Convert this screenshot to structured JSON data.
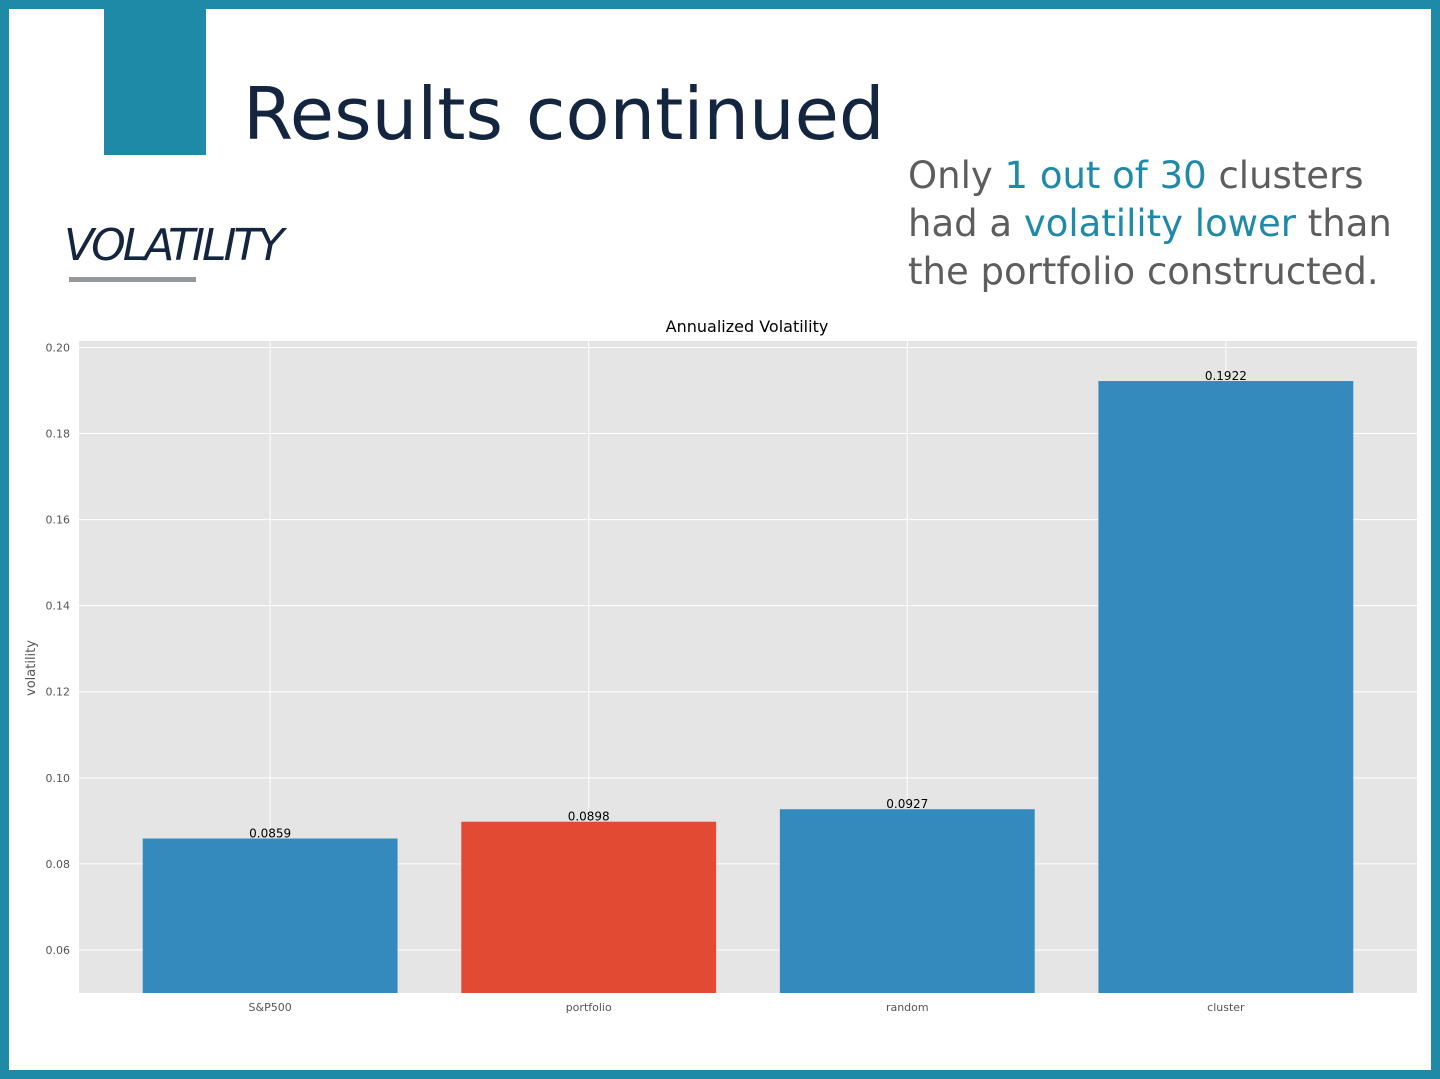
{
  "slide": {
    "title": "Results continued",
    "section_heading": "VOLATILITY",
    "callout": {
      "part1": "Only ",
      "highlight1": "1 out of 30",
      "part2": " clusters had a ",
      "highlight2": "volatility lower",
      "part3": " than the portfolio constructed."
    }
  },
  "colors": {
    "frame": "#1e8aa8",
    "title": "#14253f",
    "highlight": "#1e8aa8",
    "bar_default": "#348abd",
    "bar_highlight": "#e24a33",
    "plot_background": "#e5e5e5"
  },
  "chart_data": {
    "type": "bar",
    "title": "Annualized Volatility",
    "xlabel": "",
    "ylabel": "volatility",
    "categories": [
      "S&P500",
      "portfolio",
      "random",
      "cluster"
    ],
    "values": [
      0.0859,
      0.0898,
      0.0927,
      0.1922
    ],
    "value_labels": [
      "0.0859",
      "0.0898",
      "0.0927",
      "0.1922"
    ],
    "highlighted_category": "portfolio",
    "ylim": [
      0.05,
      0.2015
    ],
    "yticks": [
      0.06,
      0.08,
      0.1,
      0.12,
      0.14,
      0.16,
      0.18,
      0.2
    ],
    "ytick_labels": [
      "0.06",
      "0.08",
      "0.10",
      "0.12",
      "0.14",
      "0.16",
      "0.18",
      "0.20"
    ],
    "grid": true,
    "legend": "none"
  }
}
